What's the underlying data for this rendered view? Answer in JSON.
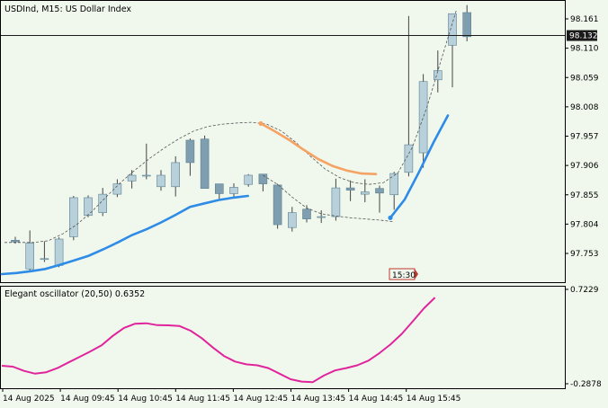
{
  "main_title": "USDInd, M15:  US Dollar Index",
  "osc_title": "Elegant oscillator (20,50) 0.6352",
  "current_price": "98.132",
  "time_marker": "15:30",
  "colors": {
    "background": "#F0F8EE",
    "bull_candle": "#B7D0DA",
    "bear_candle": "#7F9FB0",
    "wick": "#444444",
    "ma_dashed": "#555555",
    "blue_line": "#2E8BE6",
    "orange_line": "#F5A263",
    "oscillator": "#E0249B",
    "time_marker": "#C1382E"
  },
  "chart_data": [
    {
      "type": "candlestick",
      "title": "USDInd, M15:  US Dollar Index",
      "y_ticks": [
        "98.161",
        "98.110",
        "98.059",
        "98.008",
        "97.957",
        "97.906",
        "97.855",
        "97.804",
        "97.753"
      ],
      "ylim": [
        97.703,
        98.185
      ],
      "x_ticks": [
        "14 Aug 2025",
        "14 Aug 09:45",
        "14 Aug 10:45",
        "14 Aug 11:45",
        "14 Aug 12:45",
        "14 Aug 13:45",
        "14 Aug 14:45",
        "14 Aug 15:45"
      ],
      "current_price": 98.132,
      "candles": [
        {
          "o": 97.776,
          "h": 97.782,
          "l": 97.77,
          "c": 97.773
        },
        {
          "o": 97.726,
          "h": 97.793,
          "l": 97.722,
          "c": 97.771
        },
        {
          "o": 97.744,
          "h": 97.774,
          "l": 97.738,
          "c": 97.744
        },
        {
          "o": 97.732,
          "h": 97.781,
          "l": 97.729,
          "c": 97.778
        },
        {
          "o": 97.782,
          "h": 97.853,
          "l": 97.776,
          "c": 97.85
        },
        {
          "o": 97.819,
          "h": 97.854,
          "l": 97.816,
          "c": 97.85
        },
        {
          "o": 97.824,
          "h": 97.867,
          "l": 97.818,
          "c": 97.856
        },
        {
          "o": 97.856,
          "h": 97.882,
          "l": 97.851,
          "c": 97.874
        },
        {
          "o": 97.879,
          "h": 97.898,
          "l": 97.866,
          "c": 97.889
        },
        {
          "o": 97.889,
          "h": 97.944,
          "l": 97.882,
          "c": 97.889
        },
        {
          "o": 97.869,
          "h": 97.898,
          "l": 97.862,
          "c": 97.889
        },
        {
          "o": 97.869,
          "h": 97.922,
          "l": 97.852,
          "c": 97.911
        },
        {
          "o": 97.95,
          "h": 97.953,
          "l": 97.888,
          "c": 97.911
        },
        {
          "o": 97.952,
          "h": 97.958,
          "l": 97.866,
          "c": 97.866
        },
        {
          "o": 97.874,
          "h": 97.874,
          "l": 97.848,
          "c": 97.857
        },
        {
          "o": 97.857,
          "h": 97.875,
          "l": 97.851,
          "c": 97.868
        },
        {
          "o": 97.873,
          "h": 97.891,
          "l": 97.869,
          "c": 97.889
        },
        {
          "o": 97.891,
          "h": 97.891,
          "l": 97.861,
          "c": 97.874
        },
        {
          "o": 97.872,
          "h": 97.874,
          "l": 97.796,
          "c": 97.803
        },
        {
          "o": 97.798,
          "h": 97.834,
          "l": 97.791,
          "c": 97.824
        },
        {
          "o": 97.83,
          "h": 97.837,
          "l": 97.807,
          "c": 97.813
        },
        {
          "o": 97.817,
          "h": 97.828,
          "l": 97.806,
          "c": 97.817
        },
        {
          "o": 97.817,
          "h": 97.883,
          "l": 97.81,
          "c": 97.867
        },
        {
          "o": 97.867,
          "h": 97.88,
          "l": 97.844,
          "c": 97.863
        },
        {
          "o": 97.856,
          "h": 97.882,
          "l": 97.842,
          "c": 97.86
        },
        {
          "o": 97.866,
          "h": 97.871,
          "l": 97.824,
          "c": 97.858
        },
        {
          "o": 97.855,
          "h": 97.895,
          "l": 97.829,
          "c": 97.892
        },
        {
          "o": 97.894,
          "h": 98.166,
          "l": 97.887,
          "c": 97.942
        },
        {
          "o": 97.928,
          "h": 98.065,
          "l": 97.902,
          "c": 98.052
        },
        {
          "o": 98.055,
          "h": 98.106,
          "l": 98.033,
          "c": 98.071
        },
        {
          "o": 98.115,
          "h": 98.17,
          "l": 98.042,
          "c": 98.17
        },
        {
          "o": 98.172,
          "h": 98.185,
          "l": 98.122,
          "c": 98.13
        }
      ],
      "ma_dashed": [
        97.772,
        97.772,
        97.772,
        97.775,
        97.787,
        97.804,
        97.826,
        97.852,
        97.877,
        97.899,
        97.919,
        97.937,
        97.953,
        97.966,
        97.974,
        97.978,
        97.98,
        97.981,
        97.978,
        97.966,
        97.946,
        97.922,
        97.9,
        97.885,
        97.876,
        97.873,
        97.876,
        97.893,
        97.938,
        98.008,
        98.092,
        98.175
      ],
      "ma_dashed_low": [
        null,
        null,
        null,
        null,
        null,
        null,
        null,
        null,
        null,
        null,
        null,
        null,
        null,
        null,
        null,
        null,
        null,
        97.889,
        97.873,
        97.851,
        97.832,
        97.822,
        97.818,
        97.815,
        97.813,
        97.811,
        97.808
      ],
      "blue_line": [
        97.717,
        97.719,
        97.722,
        97.726,
        97.733,
        97.741,
        97.749,
        97.76,
        97.772,
        97.785,
        97.795,
        97.807,
        97.82,
        97.834,
        97.84,
        97.846,
        97.85,
        97.853
      ],
      "orange_line": [
        97.979,
        97.965,
        97.95,
        97.933,
        97.917,
        97.905,
        97.897,
        97.892,
        97.891
      ],
      "blue_line2": [
        97.815,
        97.847,
        97.895,
        97.946,
        97.993
      ],
      "series": [
        {
          "name": "Elegant oscillator (20,50)",
          "type": "line",
          "values": [
            -0.095,
            -0.105,
            -0.15,
            -0.18,
            -0.165,
            -0.12,
            -0.06,
            0.0,
            0.06,
            0.125,
            0.225,
            0.31,
            0.355,
            0.36,
            0.34,
            0.338,
            0.33,
            0.28,
            0.2,
            0.1,
            0.01,
            -0.05,
            -0.08,
            -0.09,
            -0.12,
            -0.18,
            -0.24,
            -0.265,
            -0.27,
            -0.2,
            -0.145,
            -0.12,
            -0.09,
            -0.04,
            0.04,
            0.135,
            0.245,
            0.38,
            0.52,
            0.635
          ]
        }
      ]
    },
    {
      "type": "line",
      "title": "Elegant oscillator (20,50) 0.6352",
      "y_ticks": [
        "0.7229",
        "-0.2878"
      ],
      "ylim": [
        -0.2878,
        0.7229
      ]
    }
  ]
}
